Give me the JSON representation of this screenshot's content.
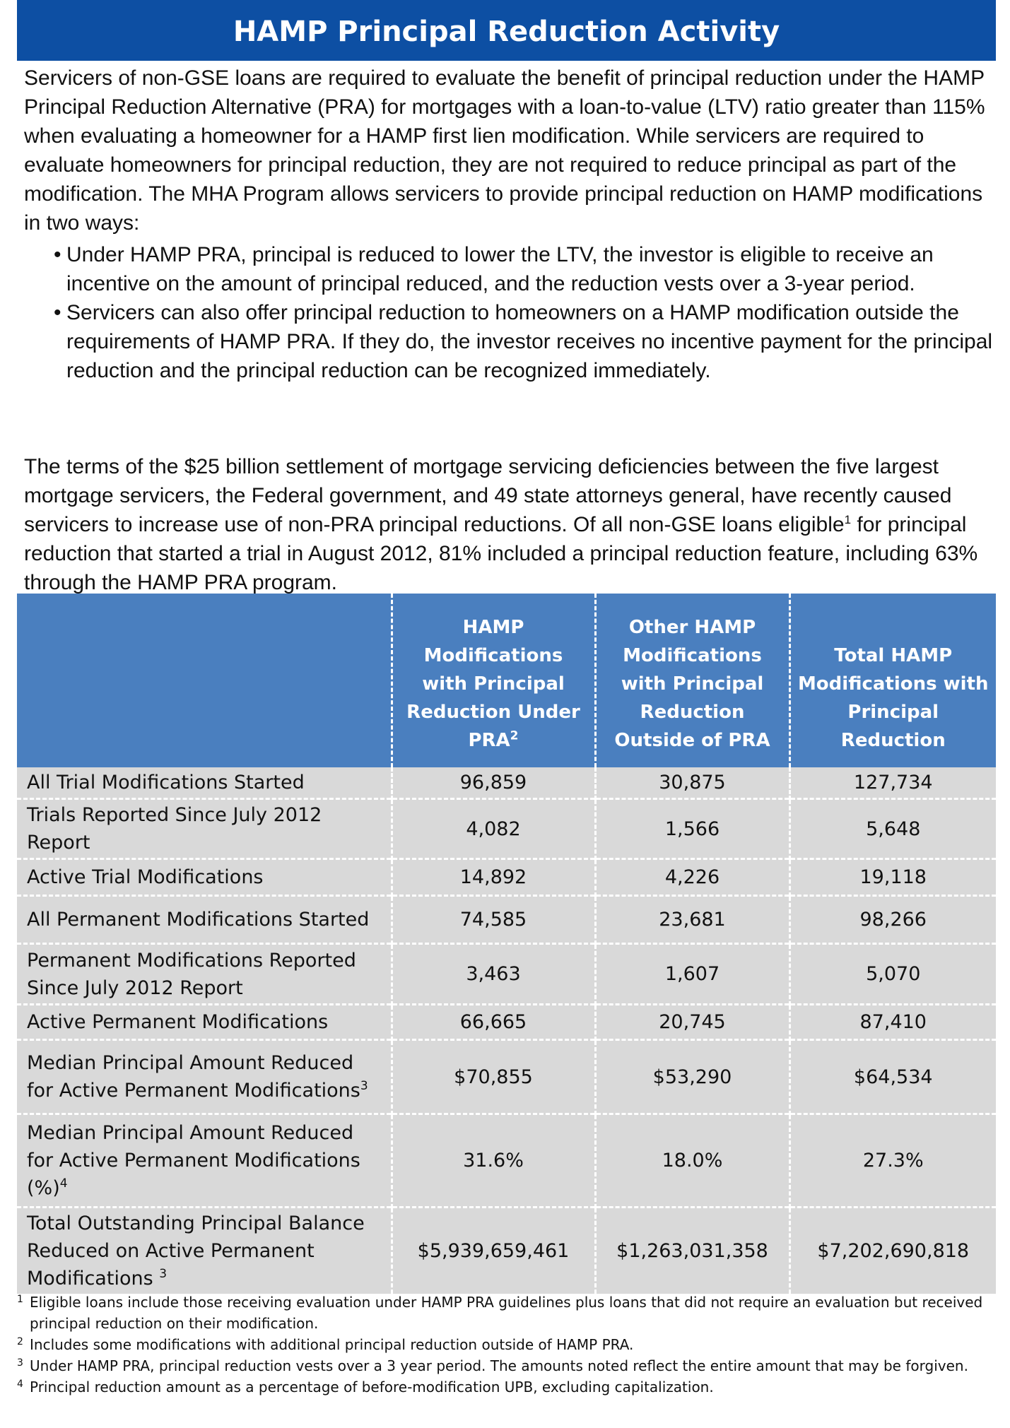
{
  "title": "HAMP Principal Reduction Activity",
  "intro": "Servicers of non-GSE loans are required to evaluate the benefit of principal reduction under the HAMP Principal Reduction Alternative (PRA) for mortgages with a loan-to-value (LTV) ratio greater than 115% when evaluating a homeowner for a HAMP first lien modification. While servicers are required to evaluate homeowners for principal reduction, they are not required to reduce principal as part of the modification. The MHA Program allows servicers to provide principal reduction on HAMP modifications in two ways:",
  "bullets": [
    "Under HAMP PRA, principal is reduced to lower the LTV, the investor is eligible to receive an incentive on the amount of principal reduced, and the reduction vests over a 3-year period.",
    "Servicers can also offer principal reduction to homeowners on a HAMP modification outside the requirements of HAMP PRA. If they do, the investor receives no incentive payment for the principal reduction and the principal reduction can be recognized immediately."
  ],
  "bullet_symbol": "•",
  "settlement": {
    "before": "The terms of the $25 billion settlement of mortgage servicing deficiencies between the five largest mortgage servicers, the Federal government, and 49 state attorneys general, have recently caused servicers to increase use of non-PRA principal reductions. Of all non-GSE loans eligible",
    "sup": "1",
    "after": " for principal reduction that started a trial in August 2012, 81% included a principal reduction feature, including 63% through the HAMP PRA program."
  },
  "table": {
    "headers": [
      {
        "text": "",
        "sup": ""
      },
      {
        "text": "HAMP Modifications with Principal Reduction Under PRA",
        "sup": "2"
      },
      {
        "text": "Other HAMP Modifications with Principal Reduction Outside of PRA",
        "sup": ""
      },
      {
        "text": "Total HAMP Modifications with Principal Reduction",
        "sup": ""
      }
    ],
    "rows": [
      {
        "label": "All Trial Modifications Started",
        "sup": "",
        "values": [
          "96,859",
          "30,875",
          "127,734"
        ]
      },
      {
        "label": "Trials Reported Since July 2012 Report",
        "sup": "",
        "values": [
          "4,082",
          "1,566",
          "5,648"
        ]
      },
      {
        "label": "Active Trial Modifications",
        "sup": "",
        "values": [
          "14,892",
          "4,226",
          "19,118"
        ]
      },
      {
        "label": "All Permanent Modifications Started",
        "sup": "",
        "values": [
          "74,585",
          "23,681",
          "98,266"
        ]
      },
      {
        "label": "Permanent Modifications Reported Since July 2012 Report",
        "sup": "",
        "values": [
          "3,463",
          "1,607",
          "5,070"
        ]
      },
      {
        "label": "Active Permanent Modifications",
        "sup": "",
        "values": [
          "66,665",
          "20,745",
          "87,410"
        ]
      },
      {
        "label": "Median Principal Amount Reduced for Active Permanent Modifications",
        "sup": "3",
        "values": [
          "$70,855",
          "$53,290",
          "$64,534"
        ]
      },
      {
        "label": "Median Principal Amount Reduced for Active Permanent Modifications (%)",
        "sup": "4",
        "values": [
          "31.6%",
          "18.0%",
          "27.3%"
        ]
      },
      {
        "label": "Total Outstanding Principal Balance Reduced on Active Permanent Modifications ",
        "sup": "3",
        "values": [
          "$5,939,659,461",
          "$1,263,031,358",
          "$7,202,690,818"
        ]
      }
    ]
  },
  "footnotes": [
    {
      "mark": "1",
      "text": "Eligible loans include those receiving evaluation under HAMP PRA guidelines plus loans that did not require an evaluation but received principal reduction on their modification."
    },
    {
      "mark": "2",
      "text": "Includes some modifications with additional principal reduction outside of HAMP PRA."
    },
    {
      "mark": "3",
      "text": "Under HAMP PRA, principal reduction vests over a 3 year period. The amounts noted reflect the entire amount that may be forgiven."
    },
    {
      "mark": "4",
      "text": "Principal reduction amount as a percentage of before-modification UPB, excluding capitalization."
    }
  ],
  "colors": {
    "title_bg": "#0d4fa3",
    "header_bg": "#4a7fbf",
    "row_bg": "#d9d9d9"
  }
}
